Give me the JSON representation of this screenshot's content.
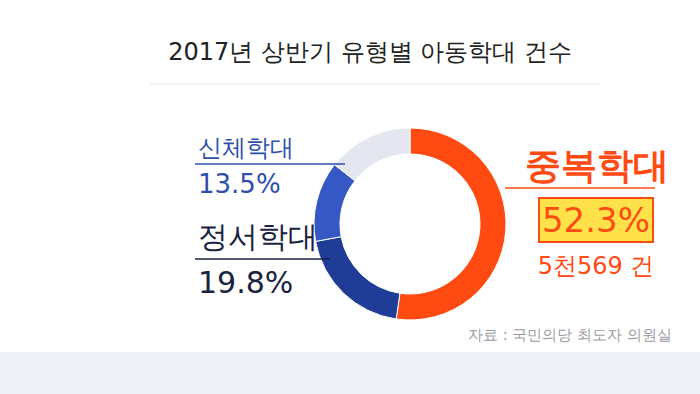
{
  "chart_data": {
    "type": "pie",
    "title": "2017년 상반기 유형별 아동학대 건수",
    "categories": [
      "중복학대",
      "정서학대",
      "신체학대",
      null
    ],
    "values": [
      52.3,
      19.8,
      13.5,
      14.4
    ],
    "value_labels": [
      "52.3%",
      "19.8%",
      "13.5%",
      null
    ],
    "colors": [
      "#ff4a12",
      "#1f3c96",
      "#3558c4",
      "#e4e7ef"
    ],
    "data_labels": true,
    "annotations": [
      {
        "index": 0,
        "text": "5천569 건"
      }
    ],
    "source": "자료 : 국민의당 최도자 의원실"
  }
}
